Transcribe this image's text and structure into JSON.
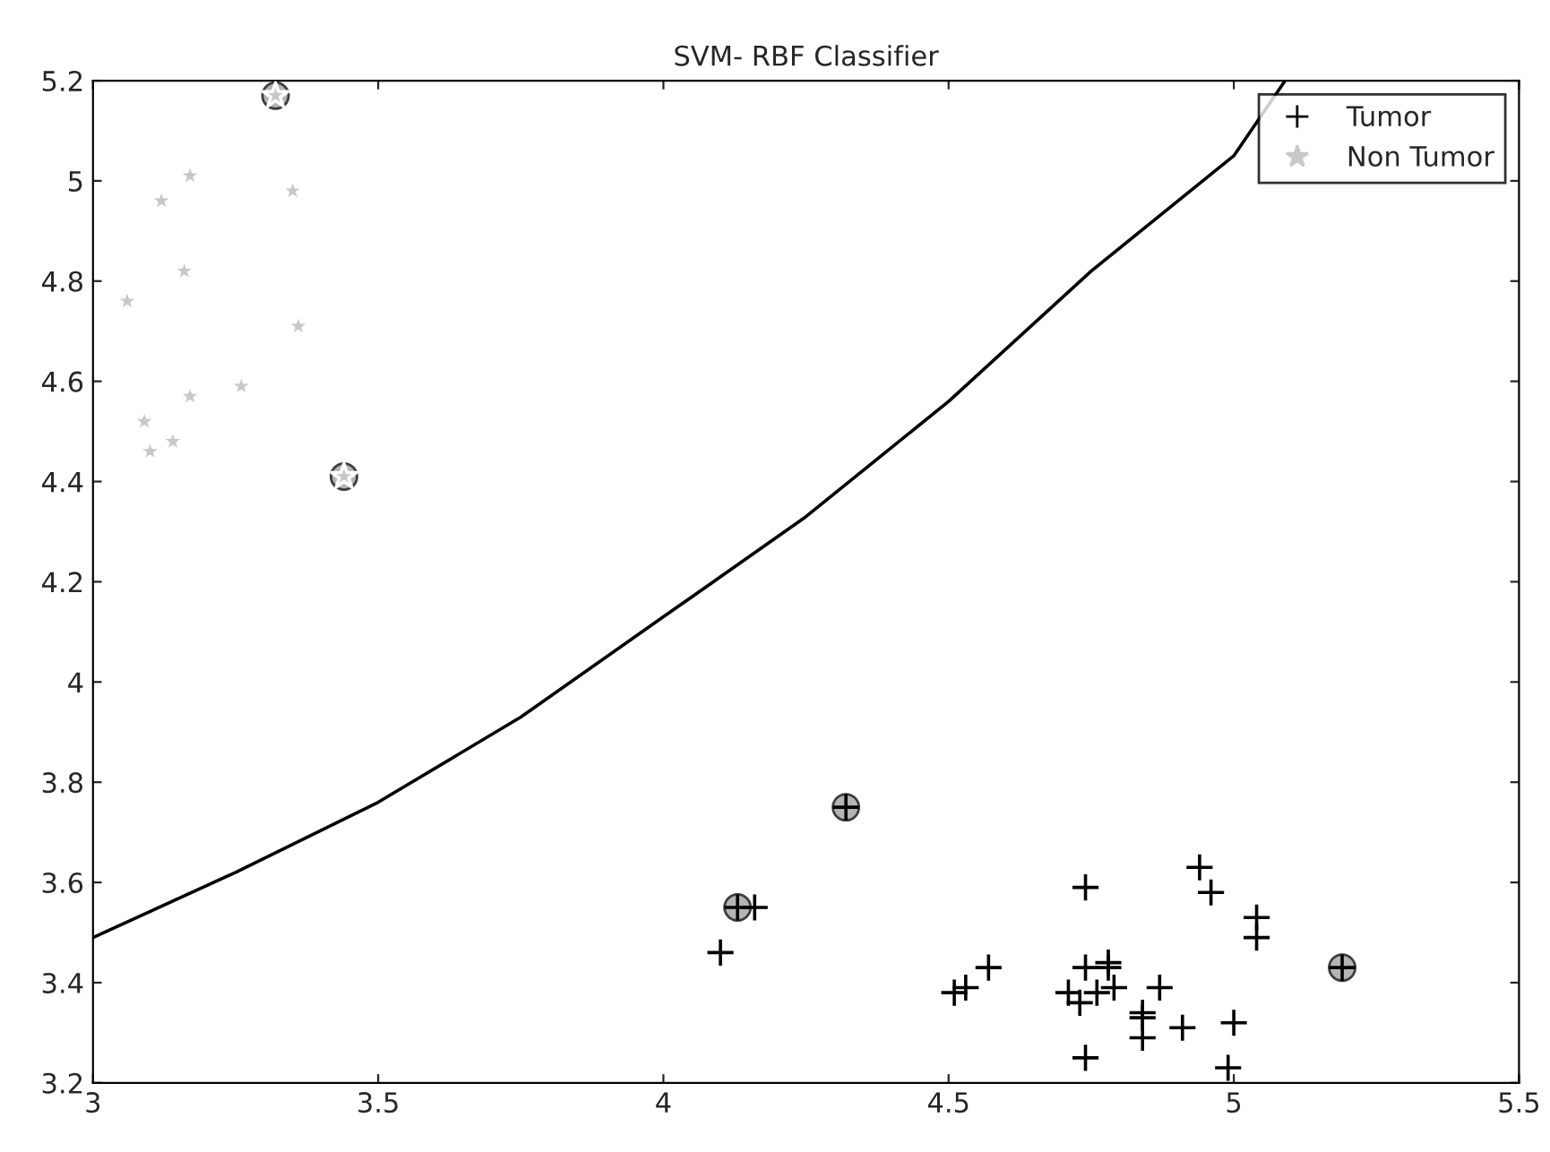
{
  "chart_data": {
    "type": "scatter",
    "title": "SVM- RBF Classifier",
    "xlim": [
      3,
      5.5
    ],
    "ylim": [
      3.2,
      5.2
    ],
    "xticks": [
      3,
      3.5,
      4,
      4.5,
      5,
      5.5
    ],
    "yticks": [
      3.2,
      3.4,
      3.6,
      3.8,
      4,
      4.2,
      4.4,
      4.6,
      4.8,
      5,
      5.2
    ],
    "grid": false,
    "legend": "top right",
    "series": [
      {
        "name": "Tumor",
        "marker": "cross",
        "color": "#000000",
        "x": [
          4.13,
          4.16,
          4.1,
          4.32,
          4.51,
          4.53,
          4.57,
          4.74,
          4.71,
          4.73,
          4.74,
          4.76,
          4.78,
          4.78,
          4.79,
          4.87,
          4.84,
          4.84,
          4.84,
          4.91,
          4.94,
          4.96,
          5.04,
          5.04,
          5.0,
          4.74,
          4.99,
          5.19
        ],
        "values": [
          3.55,
          3.55,
          3.46,
          3.75,
          3.38,
          3.39,
          3.43,
          3.59,
          3.38,
          3.36,
          3.43,
          3.38,
          3.44,
          3.43,
          3.39,
          3.39,
          3.34,
          3.33,
          3.29,
          3.31,
          3.63,
          3.58,
          3.53,
          3.49,
          3.32,
          3.25,
          3.23,
          3.43
        ]
      },
      {
        "name": "Non Tumor",
        "marker": "star",
        "color": "#c8c8c8",
        "x": [
          3.32,
          3.44,
          3.17,
          3.12,
          3.35,
          3.16,
          3.06,
          3.36,
          3.17,
          3.26,
          3.09,
          3.1,
          3.14
        ],
        "values": [
          5.17,
          4.41,
          5.01,
          4.96,
          4.98,
          4.82,
          4.76,
          4.71,
          4.57,
          4.59,
          4.52,
          4.46,
          4.48
        ]
      },
      {
        "marker": "circle",
        "color": "#b4b4b4",
        "x": [
          3.32,
          3.44,
          4.13,
          4.32,
          5.19
        ],
        "values": [
          5.17,
          4.41,
          3.55,
          3.75,
          3.43
        ]
      },
      {
        "type": "line",
        "marker": "none",
        "line_style": "solid",
        "color": "#000000",
        "x": [
          3,
          3.25,
          3.5,
          3.75,
          4,
          4.25,
          4.5,
          4.75,
          5,
          5.09
        ],
        "values": [
          3.49,
          3.62,
          3.76,
          3.93,
          4.13,
          4.33,
          4.56,
          4.82,
          5.05,
          5.2
        ]
      }
    ]
  }
}
